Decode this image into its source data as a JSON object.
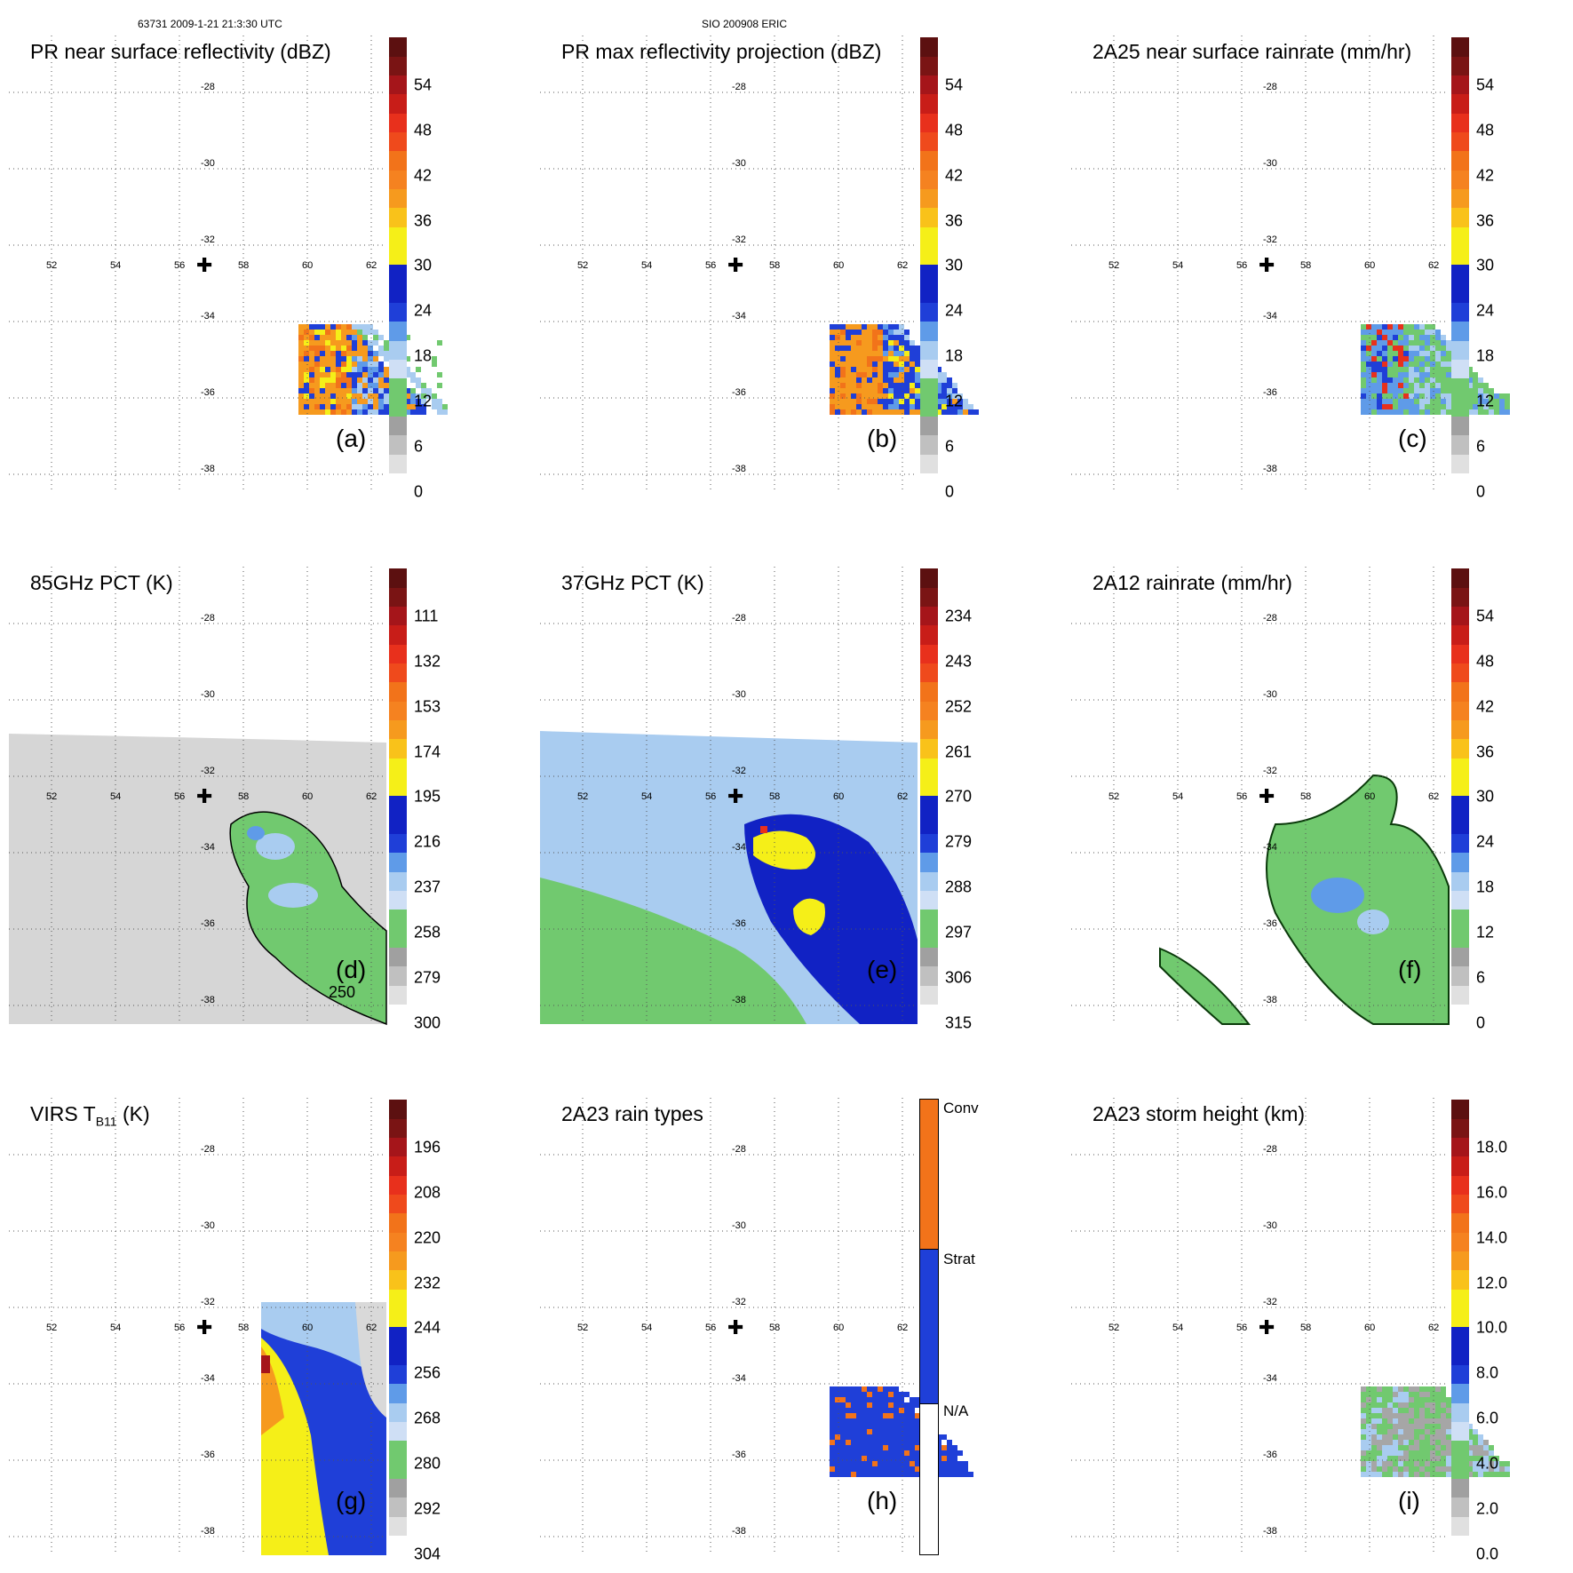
{
  "header": {
    "left": "63731 2009-1-21 21:3:30 UTC",
    "center": "SIO 200908 ERIC"
  },
  "map": {
    "lon_labels": [
      "52",
      "54",
      "56",
      "58",
      "60",
      "62"
    ],
    "lat_labels": [
      "-28",
      "-30",
      "-32",
      "-34",
      "-36",
      "-38"
    ],
    "storm_center_symbol": "✚"
  },
  "colors": {
    "white": "#ffffff",
    "lightgray": "#d9d9d9",
    "gray": "#a6a6a6",
    "green": "#71c96f",
    "lightblue": "#a9ccf0",
    "midblue": "#5f9be8",
    "blue": "#1f3fd8",
    "darkblue": "#1122c4",
    "yellow": "#f5ef18",
    "orange": "#f69a1e",
    "darkorange": "#f2731a",
    "red": "#e8301c",
    "darkred": "#a5151a",
    "maroon": "#5c1010"
  },
  "panels": [
    {
      "id": "a",
      "title": "PR near surface reflectivity (dBZ)",
      "letter": "(a)",
      "colorbar_ticks": [
        "54",
        "48",
        "42",
        "36",
        "30",
        "24",
        "18",
        "12",
        "6",
        "0"
      ]
    },
    {
      "id": "b",
      "title": "PR max reflectivity projection (dBZ)",
      "letter": "(b)",
      "colorbar_ticks": [
        "54",
        "48",
        "42",
        "36",
        "30",
        "24",
        "18",
        "12",
        "6",
        "0"
      ]
    },
    {
      "id": "c",
      "title": "2A25 near surface rainrate (mm/hr)",
      "letter": "(c)",
      "colorbar_ticks": [
        "54",
        "48",
        "42",
        "36",
        "30",
        "24",
        "18",
        "12",
        "6",
        "0"
      ]
    },
    {
      "id": "d",
      "title": "85GHz PCT (K)",
      "letter": "(d)",
      "colorbar_ticks": [
        "111",
        "132",
        "153",
        "174",
        "195",
        "216",
        "237",
        "258",
        "279",
        "300"
      ],
      "contour_label": "250"
    },
    {
      "id": "e",
      "title": "37GHz PCT (K)",
      "letter": "(e)",
      "colorbar_ticks": [
        "234",
        "243",
        "252",
        "261",
        "270",
        "279",
        "288",
        "297",
        "306",
        "315"
      ]
    },
    {
      "id": "f",
      "title": "2A12 rainrate (mm/hr)",
      "letter": "(f)",
      "colorbar_ticks": [
        "54",
        "48",
        "42",
        "36",
        "30",
        "24",
        "18",
        "12",
        "6",
        "0"
      ]
    },
    {
      "id": "g",
      "title": "VIRS T",
      "title_sub": "B11",
      "title_suffix": " (K)",
      "letter": "(g)",
      "colorbar_ticks": [
        "196",
        "208",
        "220",
        "232",
        "244",
        "256",
        "268",
        "280",
        "292",
        "304"
      ]
    },
    {
      "id": "h",
      "title": "2A23 rain types",
      "letter": "(h)",
      "colorbar_ticks": [
        "Conv",
        "Strat",
        "N/A"
      ]
    },
    {
      "id": "i",
      "title": "2A23 storm height (km)",
      "letter": "(i)",
      "colorbar_ticks": [
        "18.0",
        "16.0",
        "14.0",
        "12.0",
        "10.0",
        "8.0",
        "6.0",
        "4.0",
        "2.0",
        "0.0"
      ]
    }
  ]
}
